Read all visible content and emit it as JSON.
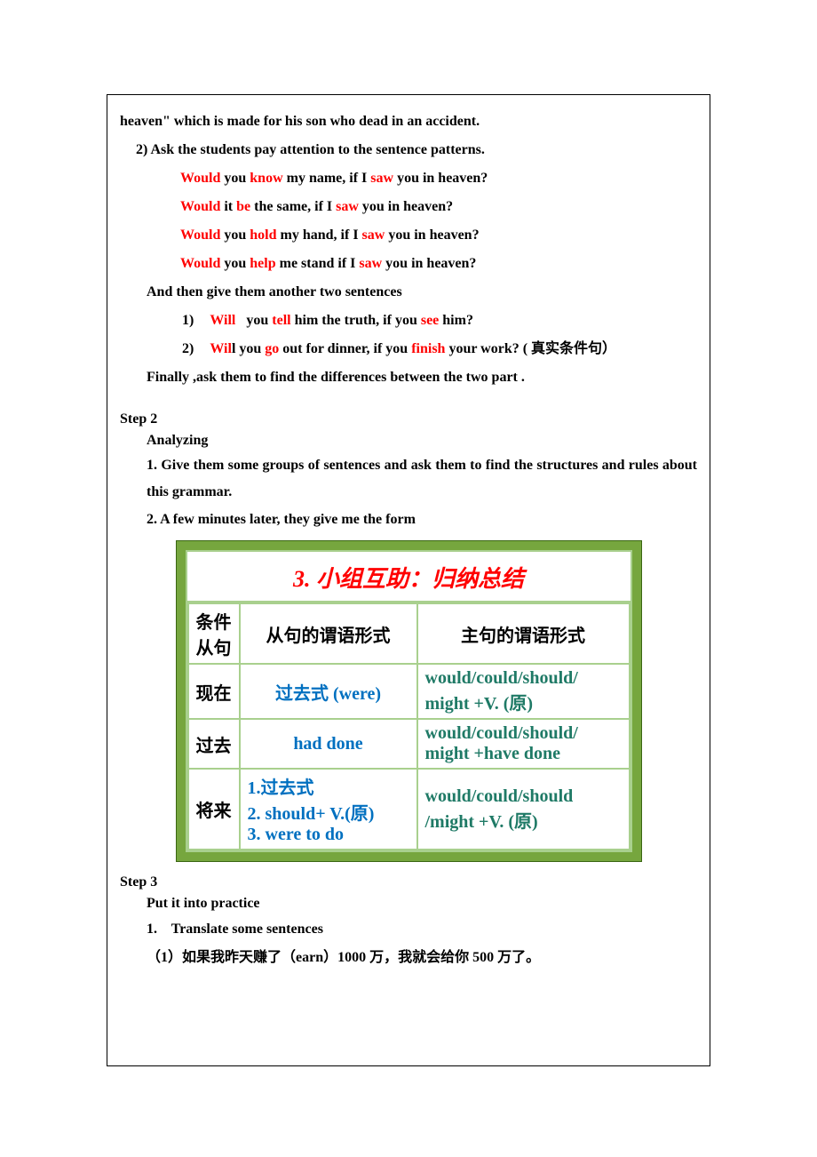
{
  "intro_line": "heaven\" which is made for his son who dead in an accident.",
  "point2": "2) Ask the students pay attention to the sentence patterns.",
  "lyrics": [
    {
      "pre": "Would",
      "mid1": " you ",
      "k1": "know",
      "mid2": " my name, if I ",
      "k2": "saw",
      "post": " you in heaven?"
    },
    {
      "pre": "Would",
      "mid1": " it ",
      "k1": "be",
      "mid2": " the same, if I ",
      "k2": "saw",
      "post": " you in heaven?"
    },
    {
      "pre": "Would",
      "mid1": " you ",
      "k1": "hold",
      "mid2": " my hand, if I ",
      "k2": "saw",
      "post": " you in heaven?"
    },
    {
      "pre": "Would",
      "mid1": " you ",
      "k1": "help",
      "mid2": " me stand if I ",
      "k2": "saw",
      "post": " you in heaven?"
    }
  ],
  "then_line": "And then give them another two sentences",
  "ex1": {
    "n": "1)",
    "w1": "Will",
    "sp": "   you ",
    "w2": "tell",
    "mid": " him the truth, if you ",
    "w3": "see",
    "post": " him?"
  },
  "ex2": {
    "n": "2)",
    "w1": "Wil",
    "w1b": "l you ",
    "w2": "go",
    "mid": " out for dinner, if you ",
    "w3": "finish",
    "post": " your work? ( 真实条件句）"
  },
  "finally_line": "Finally ,ask them to find the differences between the two part .",
  "step2": {
    "title": "Step 2",
    "sub": "Analyzing",
    "p1": "1. Give them some groups of sentences and ask them to find the structures and rules about this grammar.",
    "p2": "2. A few minutes later, they give me the form"
  },
  "table": {
    "title": "3. 小组互助：归纳总结",
    "headers": [
      "条件从句",
      "从句的谓语形式",
      "主句的谓语形式"
    ],
    "rows": [
      {
        "label": "现在",
        "c2": "过去式 (were)",
        "c3": "would/could/should/might +V. (原)"
      },
      {
        "label": "过去",
        "c2": "had done",
        "c3": "would/could/should/might +have done"
      },
      {
        "label": "将来",
        "c2": "1.过去式\n2. should+ V.(原)\n3. were to do",
        "c3": "would/could/should/might +V. (原)"
      }
    ]
  },
  "step3": {
    "title": "Step 3",
    "sub": "Put it into practice",
    "p1": "1.    Translate some sentences",
    "p2": "（1）如果我昨天赚了（earn）1000 万，我就会给你 500 万了。"
  }
}
